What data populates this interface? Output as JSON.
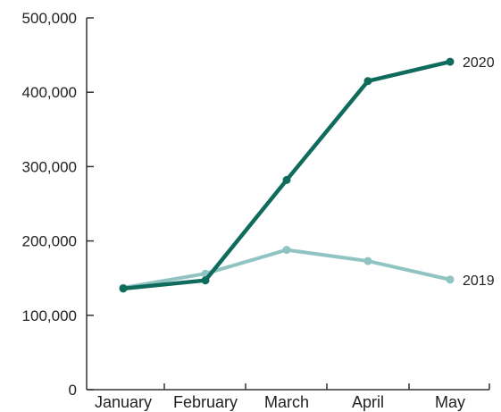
{
  "chart_data": {
    "type": "line",
    "categories": [
      "January",
      "February",
      "March",
      "April",
      "May"
    ],
    "series": [
      {
        "name": "2019",
        "values": [
          137000,
          156000,
          188000,
          173000,
          148000
        ],
        "color": "#8fc4c2"
      },
      {
        "name": "2020",
        "values": [
          136000,
          147000,
          282000,
          415000,
          441000
        ],
        "color": "#0f6b5c"
      }
    ],
    "y_ticks": [
      "0",
      "100,000",
      "200,000",
      "300,000",
      "400,000",
      "500,000"
    ],
    "ylim": [
      0,
      500000
    ],
    "legend": "inline labels at line ends",
    "grid": false
  }
}
